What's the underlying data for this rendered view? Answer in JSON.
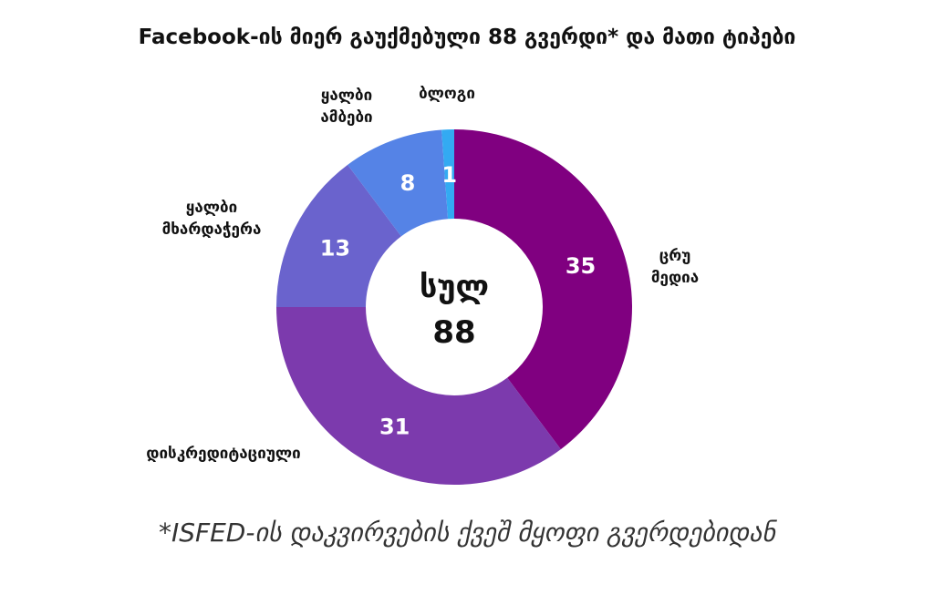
{
  "chart_data": {
    "type": "pie",
    "title": "Facebook-ის მიერ გაუქმებული 88 გვერდი* და მათი ტიპები",
    "center_label": "სულ",
    "center_total": "88",
    "slices": [
      {
        "label": "ცრუ მედია",
        "value": 35,
        "color": "#800080"
      },
      {
        "label": "დისკრედიტაციული",
        "value": 31,
        "color": "#7c3aad"
      },
      {
        "label": "ყალბი მხარდაჭერა",
        "value": 13,
        "color": "#6a63cd"
      },
      {
        "label": "ყალბი ამბები",
        "value": 8,
        "color": "#5583e6"
      },
      {
        "label": "ბლოგი",
        "value": 1,
        "color": "#33aaf2"
      }
    ]
  },
  "footnote": "*ISFED-ის დაკვირვების ქვეშ მყოფი გვერდებიდან"
}
